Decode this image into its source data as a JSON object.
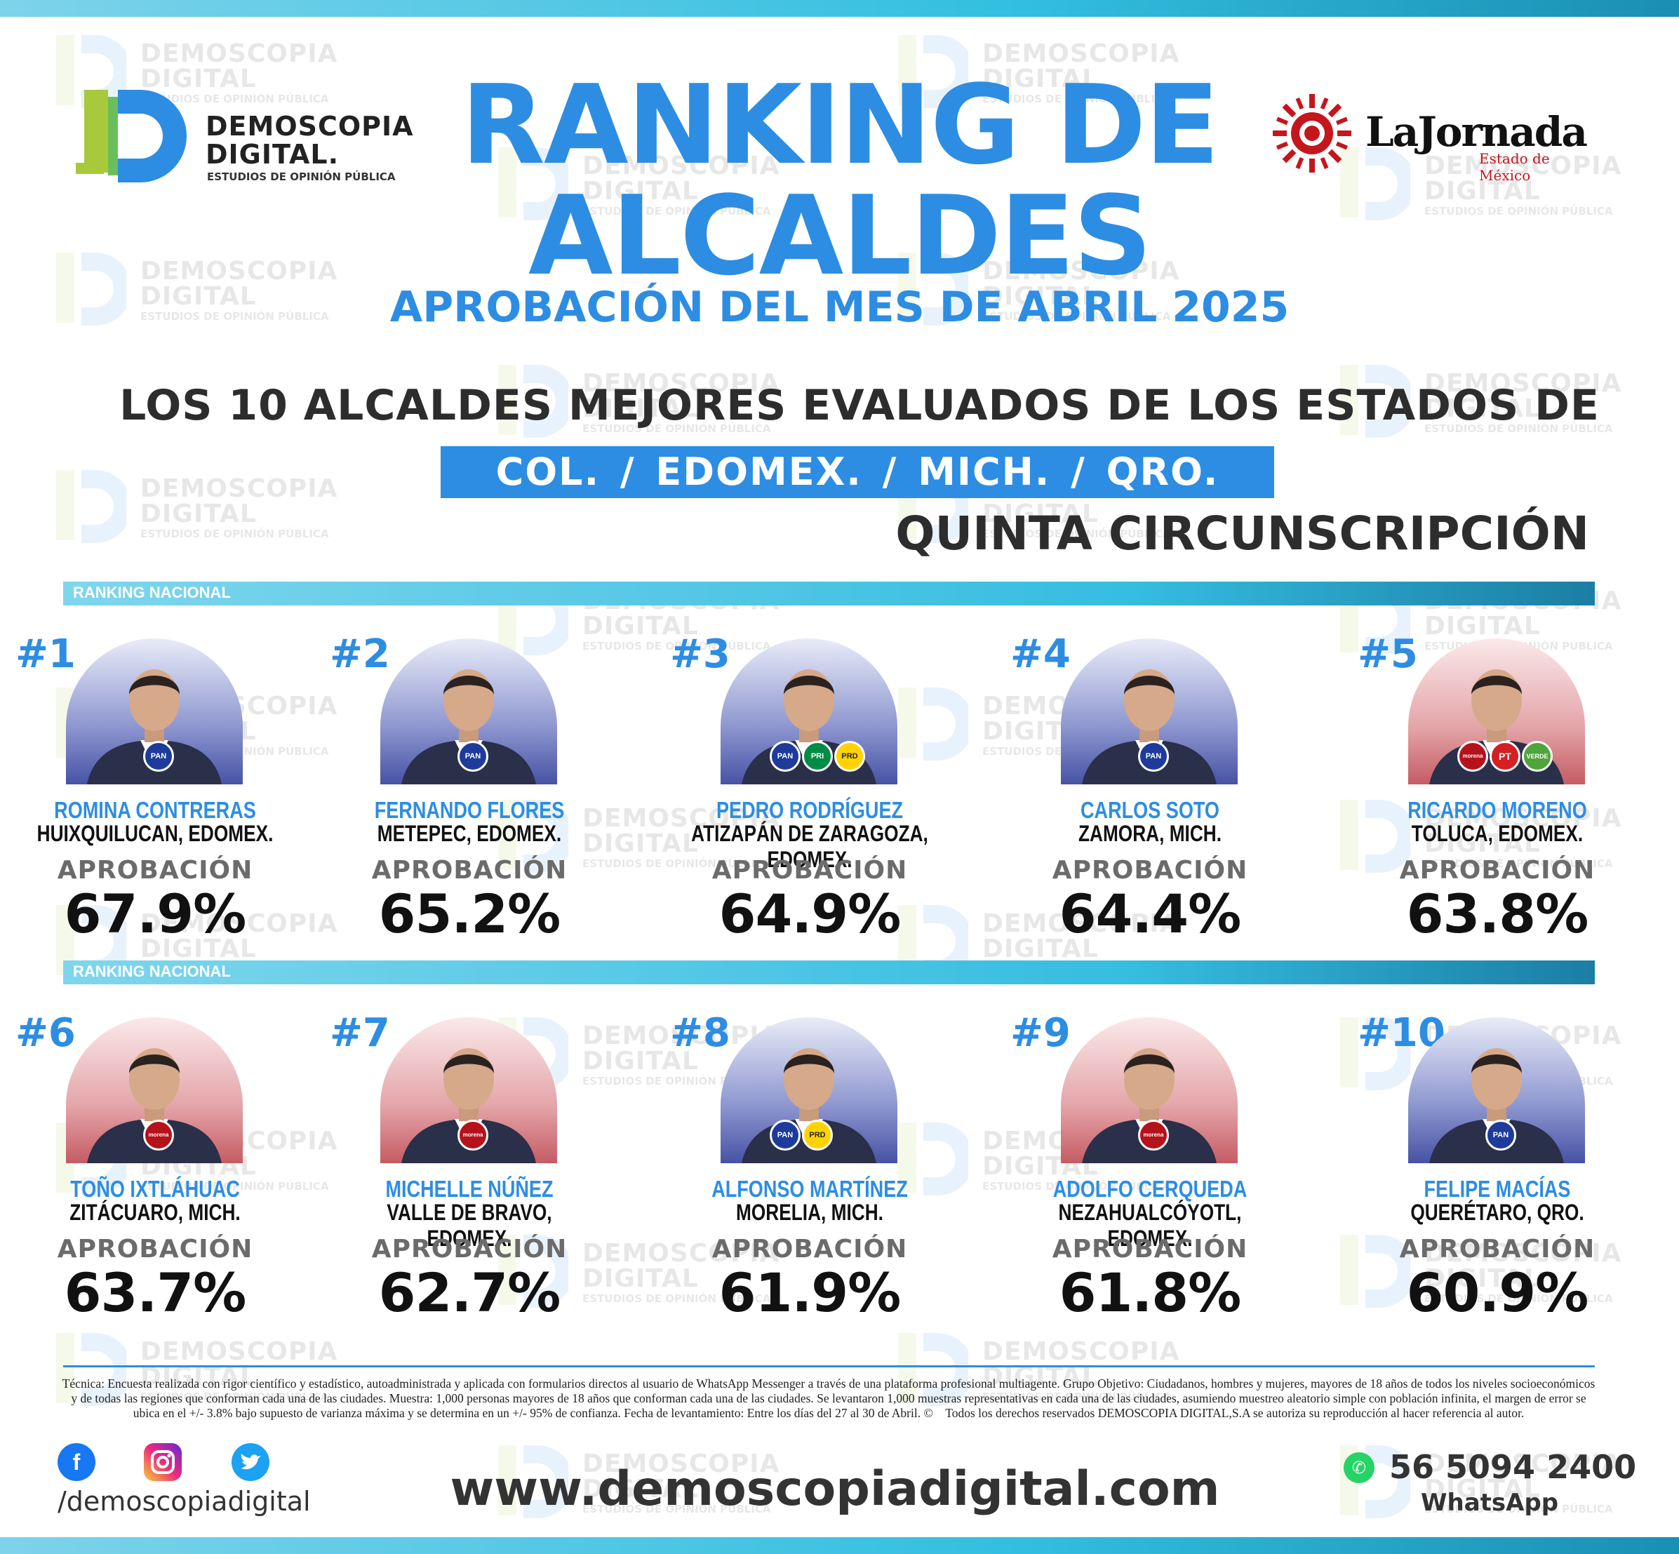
{
  "watermark": {
    "line1": "DEMOSCOPIA",
    "line2": "DIGITAL",
    "line3": "ESTUDIOS DE OPINIÓN PÚBLICA"
  },
  "logo_left": {
    "line1": "DEMOSCOPIA",
    "line2": "DIGITAL.",
    "tagline": "ESTUDIOS DE OPINIÓN PÚBLICA"
  },
  "logo_right": {
    "name": "LaJornada",
    "sub": "Estado de México"
  },
  "title": {
    "line1": "RANKING DE",
    "line2": "ALCALDES",
    "subtitle": "APROBACIÓN DEL MES DE ABRIL 2025"
  },
  "headline": "LOS 10 ALCALDES MEJORES EVALUADOS DE LOS ESTADOS DE",
  "states": "COL. /  EDOMEX.  /  MICH.  /  QRO.",
  "circunscripcion": "QUINTA CIRCUNSCRIPCIÓN",
  "ranking_label": "RANKING NACIONAL",
  "approval_label": "APROBACIÓN",
  "candidates": [
    {
      "rank": "#1",
      "name": "ROMINA CONTRERAS",
      "place": "HUIXQUILUCAN, EDOMEX.",
      "approval": "67.9%",
      "approval_value": 67.9,
      "parties": [
        "PAN"
      ],
      "bg": "blue"
    },
    {
      "rank": "#2",
      "name": "FERNANDO FLORES",
      "place": "METEPEC, EDOMEX.",
      "approval": "65.2%",
      "approval_value": 65.2,
      "parties": [
        "PAN"
      ],
      "bg": "blue"
    },
    {
      "rank": "#3",
      "name": "PEDRO RODRÍGUEZ",
      "place": "ATIZAPÁN DE ZARAGOZA, EDOMEX.",
      "approval": "64.9%",
      "approval_value": 64.9,
      "parties": [
        "PAN",
        "PRI",
        "PRD"
      ],
      "bg": "blue"
    },
    {
      "rank": "#4",
      "name": "CARLOS SOTO",
      "place": "ZAMORA, MICH.",
      "approval": "64.4%",
      "approval_value": 64.4,
      "parties": [
        "PAN"
      ],
      "bg": "blue"
    },
    {
      "rank": "#5",
      "name": "RICARDO MORENO",
      "place": "TOLUCA, EDOMEX.",
      "approval": "63.8%",
      "approval_value": 63.8,
      "parties": [
        "morena",
        "PT",
        "VERDE"
      ],
      "bg": "red"
    },
    {
      "rank": "#6",
      "name": "TOÑO IXTLÁHUAC",
      "place": "ZITÁCUARO, MICH.",
      "approval": "63.7%",
      "approval_value": 63.7,
      "parties": [
        "morena"
      ],
      "bg": "red"
    },
    {
      "rank": "#7",
      "name": "MICHELLE NÚÑEZ",
      "place": "VALLE DE BRAVO, EDOMEX.",
      "approval": "62.7%",
      "approval_value": 62.7,
      "parties": [
        "morena"
      ],
      "bg": "red"
    },
    {
      "rank": "#8",
      "name": "ALFONSO MARTÍNEZ",
      "place": "MORELIA, MICH.",
      "approval": "61.9%",
      "approval_value": 61.9,
      "parties": [
        "PAN",
        "PRD"
      ],
      "bg": "blue"
    },
    {
      "rank": "#9",
      "name": "ADOLFO CERQUEDA",
      "place": "NEZAHUALCÓYOTL, EDOMEX.",
      "approval": "61.8%",
      "approval_value": 61.8,
      "parties": [
        "morena"
      ],
      "bg": "red"
    },
    {
      "rank": "#10",
      "name": "FELIPE MACÍAS",
      "place": "QUERÉTARO, QRO.",
      "approval": "60.9%",
      "approval_value": 60.9,
      "parties": [
        "PAN"
      ],
      "bg": "blue"
    }
  ],
  "footer": {
    "tecnica": "Técnica: Encuesta realizada con rigor científico y estadístico, autoadministrada y aplicada con formularios directos al usuario de WhatsApp Messenger a través de una plataforma profesional multiagente. Grupo Objetivo: Ciudadanos, hombres y mujeres, mayores de 18 años de todos los niveles socioeconómicos y de todas las regiones que conforman cada una de las ciudades. Muestra: 1,000 personas mayores de 18 años que conforman cada una de las ciudades. Se levantaron 1,000 muestras representativas en cada una de las ciudades, asumiendo muestreo aleatorio simple con población infinita, el margen de error se ubica en el +/- 3.8% bajo supuesto de varianza máxima y se determina en un +/- 95% de confianza. Fecha de levantamiento: Entre los días del 27 al 30 de Abril. © Todos los derechos reservados DEMOSCOPIA DIGITAL,S.A se autoriza su reproducción al hacer referencia al autor.",
    "handle": "/demoscopiadigital",
    "website": "www.demoscopiadigital.com",
    "phone": "56 5094 2400",
    "whatsapp": "WhatsApp"
  },
  "colors": {
    "primary": "#2d8de3",
    "accent_cyan": "#35bde0",
    "dark_text": "#2d2d2d"
  },
  "icons": {
    "social": [
      "facebook-icon",
      "instagram-icon",
      "twitter-icon"
    ],
    "contact": "whatsapp-icon"
  }
}
